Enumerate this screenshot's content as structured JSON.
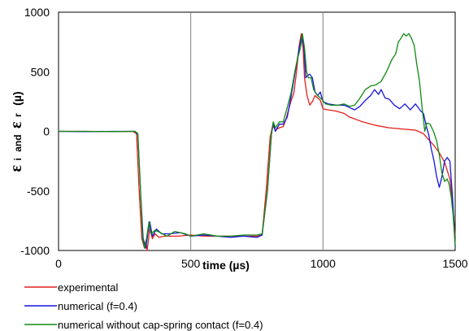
{
  "chart_data": {
    "type": "line",
    "title": "",
    "xlabel": "time (µs)",
    "ylabel": {
      "sym1": "ε",
      "sub1": "i",
      "conj": "and",
      "sym2": "ε",
      "sub2": "r",
      "unit": "(µ)"
    },
    "xlim": [
      0,
      1500
    ],
    "ylim": [
      -1000,
      1000
    ],
    "xticks": [
      "0",
      "500",
      "1000",
      "1500"
    ],
    "yticks": [
      "-1000",
      "-500",
      "0",
      "500",
      "1000"
    ],
    "xtick_values": [
      0,
      500,
      1000,
      1500
    ],
    "ytick_values": [
      -1000,
      -500,
      0,
      500,
      1000
    ],
    "grid": "vertical",
    "legend_position": "bottom-left",
    "series": [
      {
        "name": "experimental",
        "color": "#e0201b",
        "points": [
          [
            0,
            0
          ],
          [
            100,
            0
          ],
          [
            200,
            -2
          ],
          [
            280,
            0
          ],
          [
            295,
            -20
          ],
          [
            305,
            -500
          ],
          [
            315,
            -900
          ],
          [
            325,
            -980
          ],
          [
            330,
            -920
          ],
          [
            335,
            -1000
          ],
          [
            345,
            -820
          ],
          [
            355,
            -900
          ],
          [
            365,
            -860
          ],
          [
            380,
            -890
          ],
          [
            400,
            -880
          ],
          [
            450,
            -880
          ],
          [
            500,
            -870
          ],
          [
            550,
            -880
          ],
          [
            600,
            -880
          ],
          [
            650,
            -880
          ],
          [
            700,
            -880
          ],
          [
            750,
            -880
          ],
          [
            770,
            -870
          ],
          [
            785,
            -500
          ],
          [
            800,
            -50
          ],
          [
            810,
            50
          ],
          [
            820,
            10
          ],
          [
            835,
            30
          ],
          [
            850,
            40
          ],
          [
            860,
            100
          ],
          [
            870,
            180
          ],
          [
            880,
            260
          ],
          [
            890,
            320
          ],
          [
            900,
            500
          ],
          [
            910,
            720
          ],
          [
            918,
            820
          ],
          [
            925,
            700
          ],
          [
            930,
            450
          ],
          [
            940,
            300
          ],
          [
            950,
            220
          ],
          [
            960,
            250
          ],
          [
            970,
            300
          ],
          [
            980,
            280
          ],
          [
            990,
            260
          ],
          [
            1000,
            190
          ],
          [
            1020,
            180
          ],
          [
            1050,
            170
          ],
          [
            1080,
            150
          ],
          [
            1100,
            120
          ],
          [
            1150,
            80
          ],
          [
            1200,
            50
          ],
          [
            1250,
            30
          ],
          [
            1300,
            20
          ],
          [
            1350,
            10
          ],
          [
            1380,
            -20
          ],
          [
            1400,
            -70
          ],
          [
            1420,
            -120
          ],
          [
            1440,
            -180
          ],
          [
            1460,
            -260
          ],
          [
            1480,
            -400
          ],
          [
            1490,
            -600
          ],
          [
            1500,
            -880
          ]
        ]
      },
      {
        "name": "numerical (f=0.4)",
        "color": "#1515e0",
        "points": [
          [
            0,
            0
          ],
          [
            100,
            -2
          ],
          [
            200,
            0
          ],
          [
            290,
            0
          ],
          [
            300,
            -30
          ],
          [
            310,
            -500
          ],
          [
            320,
            -900
          ],
          [
            330,
            -980
          ],
          [
            338,
            -850
          ],
          [
            345,
            -760
          ],
          [
            355,
            -880
          ],
          [
            370,
            -820
          ],
          [
            390,
            -860
          ],
          [
            420,
            -860
          ],
          [
            460,
            -850
          ],
          [
            500,
            -880
          ],
          [
            550,
            -870
          ],
          [
            600,
            -880
          ],
          [
            650,
            -890
          ],
          [
            700,
            -880
          ],
          [
            750,
            -890
          ],
          [
            770,
            -870
          ],
          [
            790,
            -500
          ],
          [
            805,
            -30
          ],
          [
            812,
            70
          ],
          [
            820,
            0
          ],
          [
            835,
            60
          ],
          [
            850,
            60
          ],
          [
            865,
            120
          ],
          [
            880,
            300
          ],
          [
            895,
            500
          ],
          [
            910,
            700
          ],
          [
            920,
            800
          ],
          [
            928,
            700
          ],
          [
            935,
            450
          ],
          [
            942,
            470
          ],
          [
            950,
            480
          ],
          [
            960,
            450
          ],
          [
            970,
            330
          ],
          [
            980,
            300
          ],
          [
            990,
            330
          ],
          [
            1000,
            250
          ],
          [
            1020,
            230
          ],
          [
            1050,
            220
          ],
          [
            1080,
            220
          ],
          [
            1100,
            200
          ],
          [
            1120,
            180
          ],
          [
            1140,
            210
          ],
          [
            1160,
            260
          ],
          [
            1180,
            300
          ],
          [
            1195,
            350
          ],
          [
            1210,
            310
          ],
          [
            1220,
            350
          ],
          [
            1235,
            280
          ],
          [
            1250,
            270
          ],
          [
            1270,
            220
          ],
          [
            1290,
            190
          ],
          [
            1310,
            230
          ],
          [
            1330,
            180
          ],
          [
            1350,
            230
          ],
          [
            1370,
            170
          ],
          [
            1380,
            150
          ],
          [
            1390,
            50
          ],
          [
            1400,
            -30
          ],
          [
            1410,
            -150
          ],
          [
            1420,
            -250
          ],
          [
            1430,
            -380
          ],
          [
            1440,
            -470
          ],
          [
            1450,
            -380
          ],
          [
            1460,
            -250
          ],
          [
            1470,
            -220
          ],
          [
            1480,
            -250
          ],
          [
            1490,
            -550
          ],
          [
            1500,
            -960
          ]
        ]
      },
      {
        "name": "numerical without cap-spring contact (f=0.4)",
        "color": "#138a13",
        "points": [
          [
            0,
            0
          ],
          [
            100,
            0
          ],
          [
            200,
            -2
          ],
          [
            290,
            0
          ],
          [
            300,
            -20
          ],
          [
            310,
            -500
          ],
          [
            318,
            -900
          ],
          [
            326,
            -980
          ],
          [
            334,
            -880
          ],
          [
            342,
            -760
          ],
          [
            350,
            -860
          ],
          [
            365,
            -830
          ],
          [
            385,
            -850
          ],
          [
            410,
            -880
          ],
          [
            440,
            -840
          ],
          [
            480,
            -860
          ],
          [
            500,
            -880
          ],
          [
            550,
            -860
          ],
          [
            600,
            -880
          ],
          [
            650,
            -880
          ],
          [
            700,
            -870
          ],
          [
            750,
            -870
          ],
          [
            770,
            -860
          ],
          [
            790,
            -500
          ],
          [
            805,
            -20
          ],
          [
            812,
            80
          ],
          [
            820,
            30
          ],
          [
            835,
            80
          ],
          [
            850,
            80
          ],
          [
            865,
            200
          ],
          [
            880,
            330
          ],
          [
            895,
            520
          ],
          [
            905,
            620
          ],
          [
            915,
            700
          ],
          [
            922,
            820
          ],
          [
            930,
            700
          ],
          [
            938,
            500
          ],
          [
            945,
            450
          ],
          [
            955,
            450
          ],
          [
            965,
            350
          ],
          [
            980,
            300
          ],
          [
            995,
            270
          ],
          [
            1010,
            230
          ],
          [
            1030,
            220
          ],
          [
            1060,
            220
          ],
          [
            1080,
            230
          ],
          [
            1100,
            210
          ],
          [
            1120,
            220
          ],
          [
            1140,
            280
          ],
          [
            1160,
            350
          ],
          [
            1180,
            380
          ],
          [
            1200,
            390
          ],
          [
            1220,
            420
          ],
          [
            1240,
            500
          ],
          [
            1260,
            600
          ],
          [
            1275,
            650
          ],
          [
            1285,
            750
          ],
          [
            1295,
            780
          ],
          [
            1305,
            820
          ],
          [
            1315,
            800
          ],
          [
            1325,
            820
          ],
          [
            1335,
            780
          ],
          [
            1345,
            720
          ],
          [
            1355,
            560
          ],
          [
            1365,
            420
          ],
          [
            1375,
            200
          ],
          [
            1385,
            0
          ],
          [
            1393,
            70
          ],
          [
            1405,
            60
          ],
          [
            1418,
            0
          ],
          [
            1430,
            -80
          ],
          [
            1440,
            -200
          ],
          [
            1450,
            -350
          ],
          [
            1460,
            -420
          ],
          [
            1470,
            -400
          ],
          [
            1478,
            -450
          ],
          [
            1485,
            -550
          ],
          [
            1492,
            -700
          ],
          [
            1500,
            -960
          ]
        ]
      }
    ]
  }
}
